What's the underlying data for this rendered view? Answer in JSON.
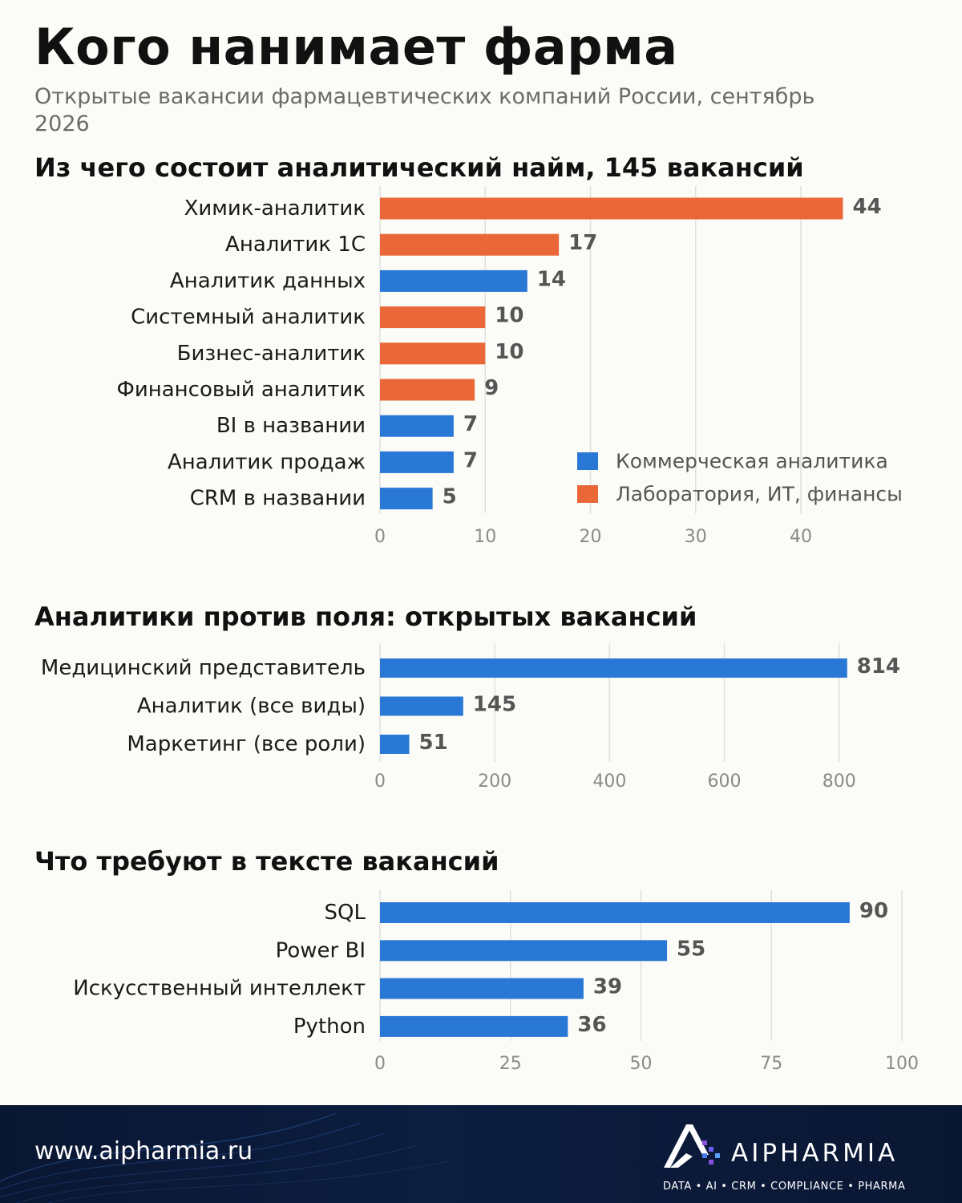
{
  "header": {
    "title": "Кого нанимает фарма",
    "subtitle": "Открытые вакансии фармацевтических компаний России, сентябрь 2026"
  },
  "colors": {
    "commercial": "#2a78d6",
    "lab_it_finance": "#ea6837",
    "grid": "#e0e0dc",
    "tick": "#8a8a8a",
    "value_label": "#555555"
  },
  "chart_data": [
    {
      "type": "bar",
      "orientation": "horizontal",
      "title": "Из чего состоит аналитический найм, 145 вакансий",
      "categories": [
        "Химик-аналитик",
        "Аналитик 1С",
        "Аналитик данных",
        "Системный аналитик",
        "Бизнес-аналитик",
        "Финансовый аналитик",
        "BI в названии",
        "Аналитик продаж",
        "CRM в названии"
      ],
      "values": [
        44,
        17,
        14,
        10,
        10,
        9,
        7,
        7,
        5
      ],
      "groups": [
        "lab_it_finance",
        "lab_it_finance",
        "commercial",
        "lab_it_finance",
        "lab_it_finance",
        "lab_it_finance",
        "commercial",
        "commercial",
        "commercial"
      ],
      "legend": [
        {
          "key": "commercial",
          "label": "Коммерческая аналитика"
        },
        {
          "key": "lab_it_finance",
          "label": "Лаборатория, ИТ, финансы"
        }
      ],
      "legend_position": "bottom-right",
      "xlim": [
        0,
        48
      ],
      "xticks": [
        0,
        10,
        20,
        30,
        40
      ],
      "grid": true
    },
    {
      "type": "bar",
      "orientation": "horizontal",
      "title": "Аналитики против поля: открытых вакансий",
      "categories": [
        "Медицинский представитель",
        "Аналитик (все виды)",
        "Маркетинг (все роли)"
      ],
      "values": [
        814,
        145,
        51
      ],
      "xlim": [
        0,
        880
      ],
      "xticks": [
        0,
        200,
        400,
        600,
        800
      ],
      "grid": true
    },
    {
      "type": "bar",
      "orientation": "horizontal",
      "title": "Что требуют в тексте вакансий",
      "categories": [
        "SQL",
        "Power BI",
        "Искусственный интеллект",
        "Python"
      ],
      "values": [
        90,
        55,
        39,
        36
      ],
      "xlim": [
        0,
        100
      ],
      "xticks": [
        0,
        25,
        50,
        75,
        100
      ],
      "grid": true
    }
  ],
  "footer": {
    "url": "www.aipharmia.ru",
    "brand": "AIPHARMIA",
    "tagline": "DATA • AI • CRM • COMPLIANCE • PHARMA"
  }
}
